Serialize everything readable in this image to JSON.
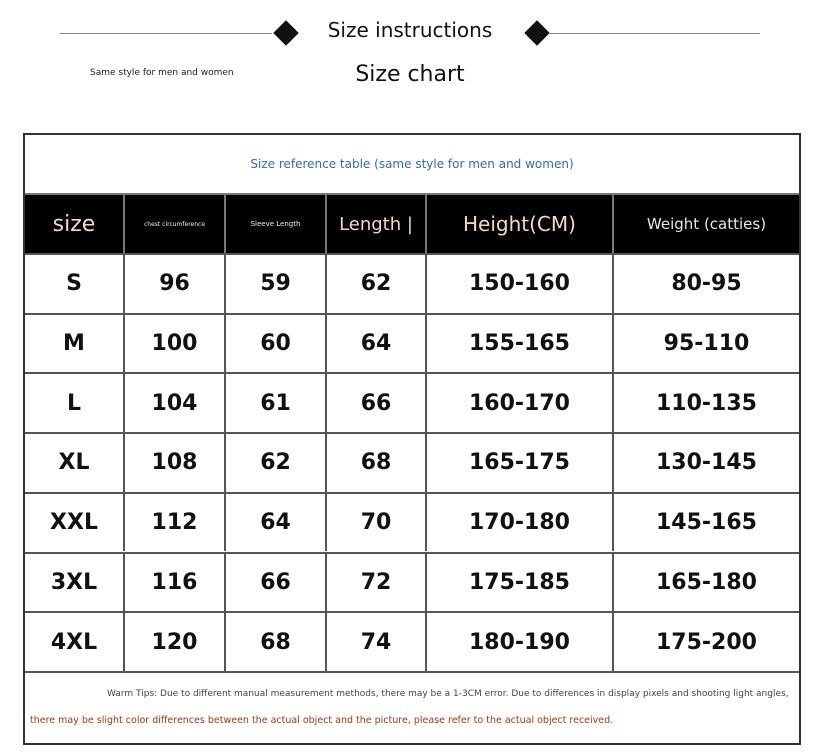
{
  "header": {
    "title": "Size instructions",
    "subtitle": "Size chart",
    "note": "Same style for men and women"
  },
  "table": {
    "caption": "Size reference table (same style for men and women)",
    "columns": [
      "size",
      "chest circumference",
      "Sleeve Length",
      "Length |",
      "Height(CM)",
      "Weight (catties)"
    ],
    "rows": [
      [
        "S",
        "96",
        "59",
        "62",
        "150-160",
        "80-95"
      ],
      [
        "M",
        "100",
        "60",
        "64",
        "155-165",
        "95-110"
      ],
      [
        "L",
        "104",
        "61",
        "66",
        "160-170",
        "110-135"
      ],
      [
        "XL",
        "108",
        "62",
        "68",
        "165-175",
        "130-145"
      ],
      [
        "XXL",
        "112",
        "64",
        "70",
        "170-180",
        "145-165"
      ],
      [
        "3XL",
        "116",
        "66",
        "72",
        "175-185",
        "165-180"
      ],
      [
        "4XL",
        "120",
        "68",
        "74",
        "180-190",
        "175-200"
      ]
    ]
  },
  "tips": {
    "line1": "Warm Tips: Due to different manual measurement methods, there may be a 1-3CM error. Due to differences in display pixels and shooting light angles,",
    "line2": "there may be slight color differences between the actual object and the picture, please refer to the actual object received."
  }
}
